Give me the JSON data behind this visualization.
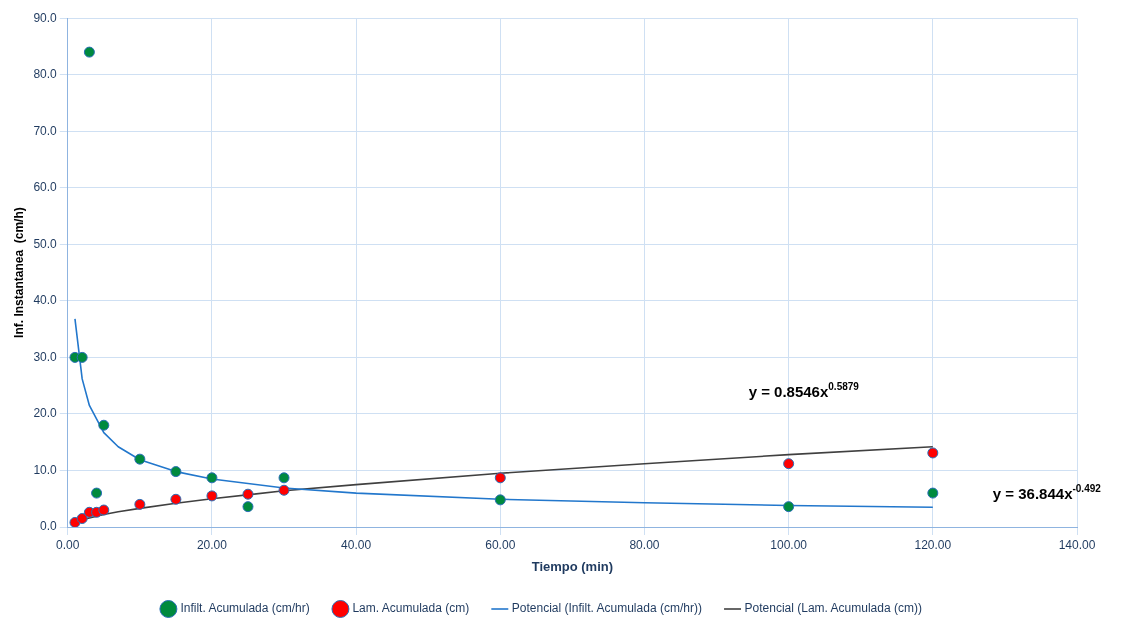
{
  "chart_data": {
    "type": "scatter",
    "xlabel": "Tiempo (min)",
    "ylabel": "Inf. Instantanea  (cm/h)",
    "xlim": [
      0,
      140
    ],
    "xticks": [
      {
        "value": 0,
        "label": "0.00"
      },
      {
        "value": 20,
        "label": "20.00"
      },
      {
        "value": 40,
        "label": "40.00"
      },
      {
        "value": 60,
        "label": "60.00"
      },
      {
        "value": 80,
        "label": "80.00"
      },
      {
        "value": 100,
        "label": "100.00"
      },
      {
        "value": 120,
        "label": "120.00"
      },
      {
        "value": 140,
        "label": "140.00"
      }
    ],
    "ylim": [
      0,
      90
    ],
    "yticks": [
      {
        "value": 0,
        "label": "0.0"
      },
      {
        "value": 10,
        "label": "10.0"
      },
      {
        "value": 20,
        "label": "20.0"
      },
      {
        "value": 30,
        "label": "30.0"
      },
      {
        "value": 40,
        "label": "40.0"
      },
      {
        "value": 50,
        "label": "50.0"
      },
      {
        "value": 60,
        "label": "60.0"
      },
      {
        "value": 70,
        "label": "70.0"
      },
      {
        "value": 80,
        "label": "80.0"
      },
      {
        "value": 90,
        "label": "90.0"
      }
    ],
    "grid": true,
    "legend": "bottom",
    "series": [
      {
        "name": "Infilt. Acumulada (cm/hr)",
        "marker": "circle",
        "color": "#008a3e",
        "x": [
          1,
          2,
          3,
          4,
          5,
          10,
          15,
          20,
          25,
          30,
          60,
          100,
          120
        ],
        "values": [
          30,
          30,
          84,
          6,
          18,
          12,
          9.8,
          8.7,
          3.6,
          8.7,
          4.8,
          3.6,
          6
        ]
      },
      {
        "name": "Lam. Acumulada (cm)",
        "marker": "circle",
        "color": "#ff0000",
        "x": [
          1,
          2,
          3,
          4,
          5,
          10,
          15,
          20,
          25,
          30,
          60,
          100,
          120
        ],
        "values": [
          0.8,
          1.5,
          2.6,
          2.6,
          3,
          4,
          4.9,
          5.5,
          5.8,
          6.5,
          8.7,
          11.2,
          13.1
        ]
      },
      {
        "name": "Potencial (Infilt. Acumulada (cm/hr))",
        "type": "line",
        "color": "#2277cc",
        "x": [
          1,
          2,
          3,
          5,
          7,
          10,
          15,
          20,
          30,
          40,
          60,
          80,
          100,
          120
        ],
        "values": [
          36.8,
          26.2,
          21.5,
          16.7,
          14.2,
          11.9,
          9.8,
          8.5,
          6.9,
          6,
          4.9,
          4.3,
          3.8,
          3.5
        ]
      },
      {
        "name": "Potencial (Lam. Acumulada (cm))",
        "type": "line",
        "color": "#404040",
        "x": [
          1,
          2,
          3,
          5,
          7,
          10,
          15,
          20,
          30,
          40,
          60,
          80,
          100,
          120
        ],
        "values": [
          0.9,
          1.3,
          1.6,
          2.2,
          2.7,
          3.3,
          4.2,
          5,
          6.4,
          7.5,
          9.5,
          11.2,
          12.8,
          14.2
        ]
      }
    ],
    "annotations": [
      "y = 0.8546x$^{0.5879}$",
      "y = 36.844x$^{-0.492}$"
    ]
  }
}
